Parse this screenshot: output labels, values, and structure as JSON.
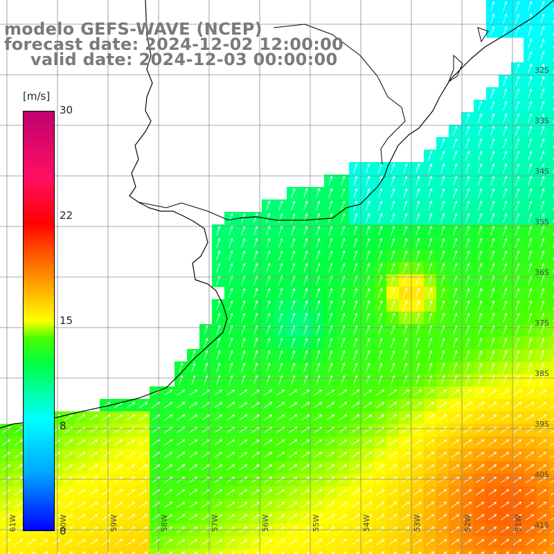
{
  "title": {
    "line1": "modelo GEFS-WAVE (NCEP)",
    "line2": "forecast date: 2024-12-02 12:00:00",
    "line3": "valid date: 2024-12-03 00:00:00"
  },
  "colorbar": {
    "unit": "[m/s]",
    "labels": [
      "30",
      "22",
      "15",
      "8",
      "0"
    ],
    "values": [
      30,
      22,
      15,
      8,
      0
    ],
    "colors": [
      "#0000ff",
      "#00ffff",
      "#00ff00",
      "#ffff00",
      "#ff0000",
      "#c00070"
    ]
  },
  "lat_labels": [
    "32S",
    "33S",
    "34S",
    "35S",
    "36S",
    "37S",
    "38S",
    "39S",
    "40S",
    "41S"
  ],
  "lon_labels": [
    "61W",
    "60W",
    "59W",
    "58W",
    "57W",
    "56W",
    "55W",
    "54W",
    "53W",
    "52W",
    "51W"
  ],
  "colors": {
    "land": "#ffffff",
    "grid": "#8a8a8a",
    "coast": "#000000",
    "arrow": "#ffffff"
  }
}
